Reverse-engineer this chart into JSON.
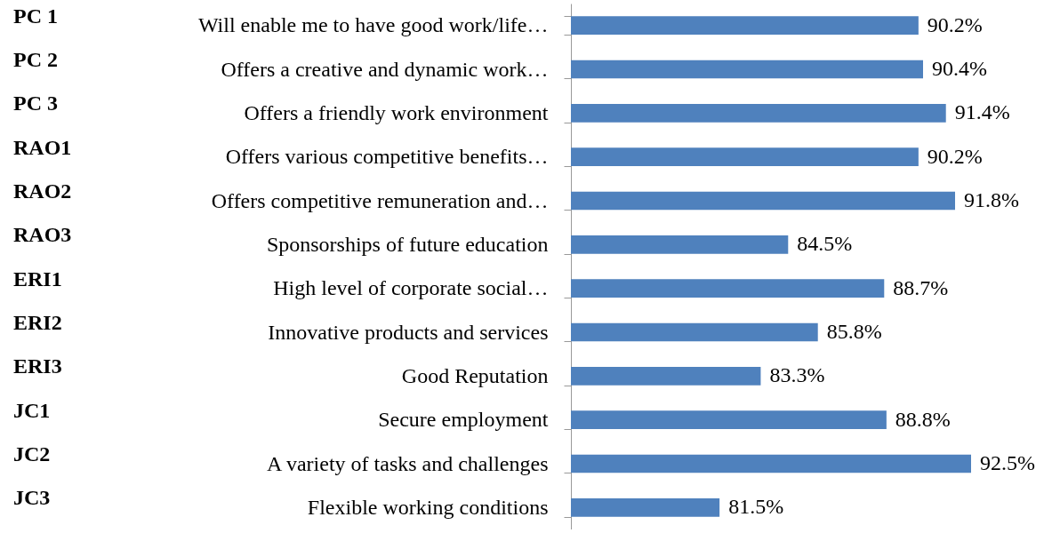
{
  "chart_data": {
    "type": "bar",
    "orientation": "horizontal",
    "categories": [
      "Will enable me to have good work/life…",
      "Offers a creative and dynamic work…",
      "Offers a friendly work environment",
      "Offers various competitive benefits…",
      "Offers competitive remuneration and…",
      "Sponsorships of future education",
      "High level of corporate social…",
      "Innovative products and services",
      "Good Reputation",
      "Secure employment",
      "A variety of tasks and challenges",
      "Flexible working conditions"
    ],
    "values": [
      90.2,
      90.4,
      91.4,
      90.2,
      91.8,
      84.5,
      88.7,
      85.8,
      83.3,
      88.8,
      92.5,
      81.5
    ],
    "value_labels": [
      "90.2%",
      "90.4%",
      "91.4%",
      "90.2%",
      "91.8%",
      "84.5%",
      "88.7%",
      "85.8%",
      "83.3%",
      "88.8%",
      "92.5%",
      "81.5%"
    ],
    "color": "#4f81bd",
    "xlim": [
      75,
      96
    ],
    "tick_labels": "y",
    "annotations": [
      "PC 1",
      "PC 2",
      "PC 3",
      "RAO1",
      "RAO2",
      "RAO3",
      "ERI1",
      "ERI2",
      "ERI3",
      "JC1",
      "JC2",
      "JC3"
    ]
  }
}
